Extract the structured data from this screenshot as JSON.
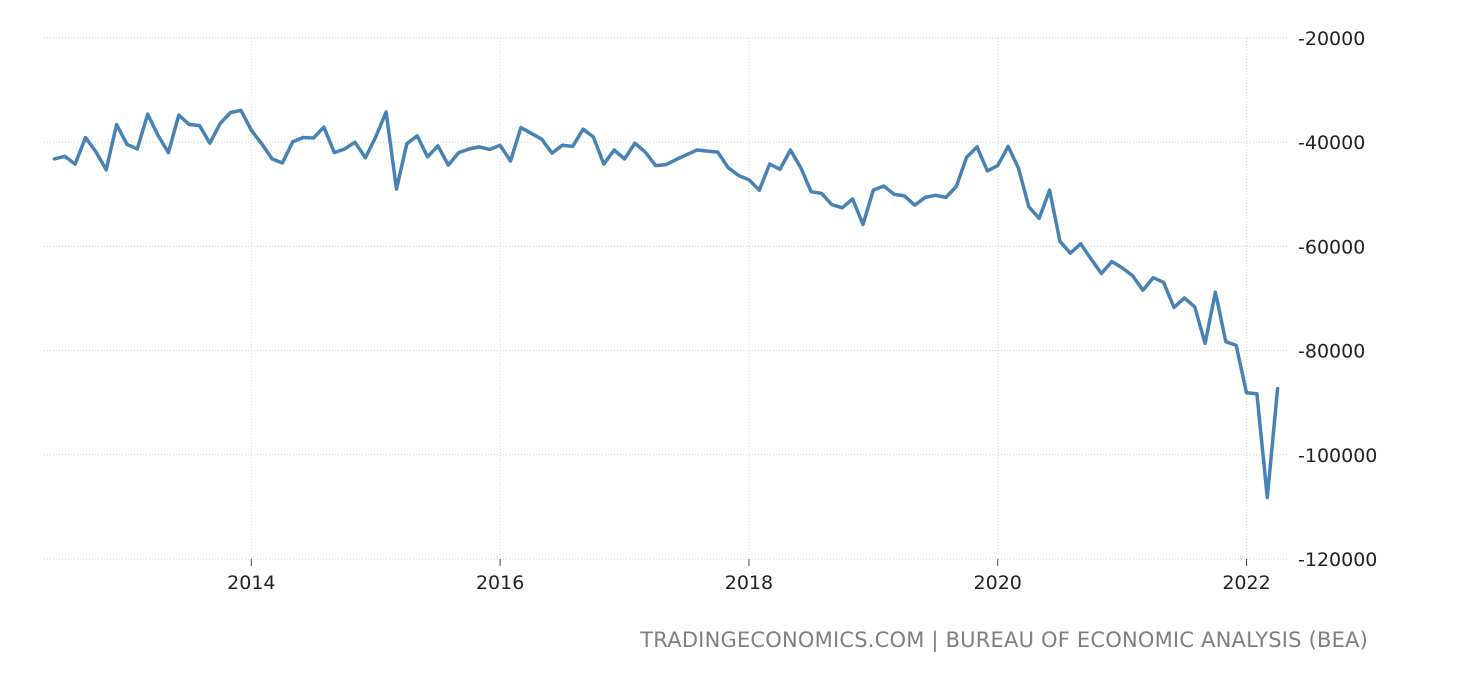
{
  "source_text": "TRADINGECONOMICS.COM | BUREAU OF ECONOMIC ANALYSIS (BEA)",
  "colors": {
    "line": "#4682b4",
    "grid": "#d3d3d3",
    "text": "#222222",
    "source": "#7f7f7f"
  },
  "chart_data": {
    "type": "line",
    "title": "",
    "xlabel": "",
    "ylabel": "",
    "grid": true,
    "y_axis_position": "right",
    "ylim": [
      -120000,
      -20000
    ],
    "xlim": [
      "2012-05",
      "2022-05"
    ],
    "y_ticks": [
      "-20000",
      "-40000",
      "-60000",
      "-80000",
      "-100000",
      "-120000"
    ],
    "x_ticks": [
      "2014",
      "2016",
      "2018",
      "2020",
      "2022"
    ],
    "series": [
      {
        "name": "",
        "x": [
          "2012-06",
          "2012-07",
          "2012-08",
          "2012-09",
          "2012-10",
          "2012-11",
          "2012-12",
          "2013-01",
          "2013-02",
          "2013-03",
          "2013-04",
          "2013-05",
          "2013-06",
          "2013-07",
          "2013-08",
          "2013-09",
          "2013-10",
          "2013-11",
          "2013-12",
          "2014-01",
          "2014-02",
          "2014-03",
          "2014-04",
          "2014-05",
          "2014-06",
          "2014-07",
          "2014-08",
          "2014-09",
          "2014-10",
          "2014-11",
          "2014-12",
          "2015-01",
          "2015-02",
          "2015-03",
          "2015-04",
          "2015-05",
          "2015-06",
          "2015-07",
          "2015-08",
          "2015-09",
          "2015-10",
          "2015-11",
          "2015-12",
          "2016-01",
          "2016-02",
          "2016-03",
          "2016-04",
          "2016-05",
          "2016-06",
          "2016-07",
          "2016-08",
          "2016-09",
          "2016-10",
          "2016-11",
          "2016-12",
          "2017-01",
          "2017-02",
          "2017-03",
          "2017-04",
          "2017-05",
          "2017-06",
          "2017-07",
          "2017-08",
          "2017-09",
          "2017-10",
          "2017-11",
          "2017-12",
          "2018-01",
          "2018-02",
          "2018-03",
          "2018-04",
          "2018-05",
          "2018-06",
          "2018-07",
          "2018-08",
          "2018-09",
          "2018-10",
          "2018-11",
          "2018-12",
          "2019-01",
          "2019-02",
          "2019-03",
          "2019-04",
          "2019-05",
          "2019-06",
          "2019-07",
          "2019-08",
          "2019-09",
          "2019-10",
          "2019-11",
          "2019-12",
          "2020-01",
          "2020-02",
          "2020-03",
          "2020-04",
          "2020-05",
          "2020-06",
          "2020-07",
          "2020-08",
          "2020-09",
          "2020-10",
          "2020-11",
          "2020-12",
          "2021-01",
          "2021-02",
          "2021-03",
          "2021-04",
          "2021-05",
          "2021-06",
          "2021-07",
          "2021-08",
          "2021-09",
          "2021-10",
          "2021-11",
          "2021-12",
          "2022-01",
          "2022-02",
          "2022-03",
          "2022-04"
        ],
        "values": [
          -43200,
          -42700,
          -44200,
          -39100,
          -41800,
          -45300,
          -36600,
          -40400,
          -41300,
          -34600,
          -38700,
          -42000,
          -34800,
          -36600,
          -36800,
          -40200,
          -36400,
          -34300,
          -33900,
          -37700,
          -40300,
          -43200,
          -44000,
          -39900,
          -39100,
          -39200,
          -37100,
          -42000,
          -41300,
          -40000,
          -43000,
          -39000,
          -34200,
          -49000,
          -40300,
          -38800,
          -42800,
          -40700,
          -44400,
          -42000,
          -41300,
          -40900,
          -41400,
          -40600,
          -43600,
          -37200,
          -38300,
          -39400,
          -42100,
          -40600,
          -40800,
          -37500,
          -39000,
          -44200,
          -41500,
          -43200,
          -40200,
          -41900,
          -44500,
          -44300,
          -43300,
          -42400,
          -41500,
          -41700,
          -41900,
          -44900,
          -46400,
          -47200,
          -49200,
          -44200,
          -45200,
          -41500,
          -44900,
          -49500,
          -49800,
          -52000,
          -52600,
          -50900,
          -55800,
          -49200,
          -48400,
          -50000,
          -50300,
          -52100,
          -50600,
          -50200,
          -50600,
          -48500,
          -42900,
          -40900,
          -45500,
          -44500,
          -40800,
          -45000,
          -52400,
          -54600,
          -49200,
          -59000,
          -61300,
          -59500,
          -62400,
          -65200,
          -62900,
          -64100,
          -65600,
          -68400,
          -66000,
          -66900,
          -71700,
          -69900,
          -71600,
          -78600,
          -68800,
          -78300,
          -79000,
          -88100,
          -88300,
          -108200,
          -87300
        ]
      }
    ]
  }
}
